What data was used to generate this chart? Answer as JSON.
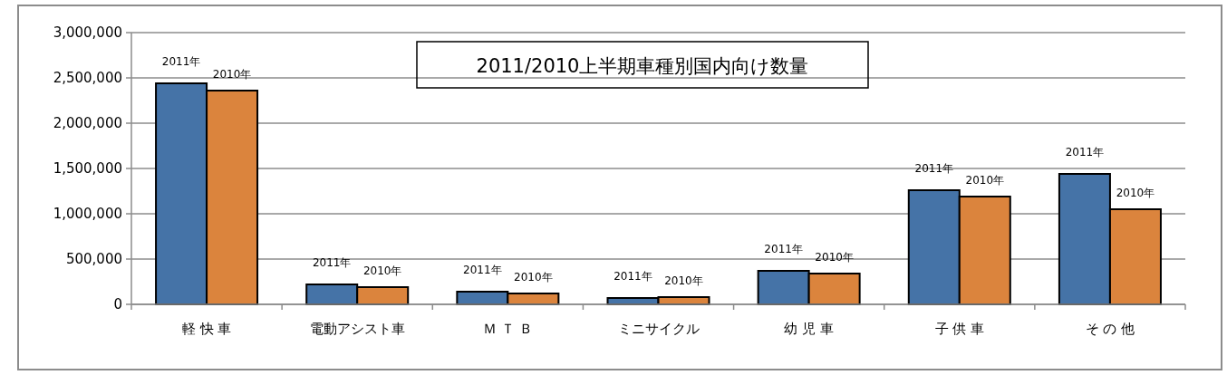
{
  "chart_data": {
    "type": "bar",
    "title": "2011/2010上半期車種別国内向け数量",
    "categories": [
      "軽 快 車",
      "電動アシスト車",
      "Ｍ Ｔ Ｂ",
      "ミニサイクル",
      "幼 児 車",
      "子 供 車",
      "そ の 他"
    ],
    "series": [
      {
        "name": "2011年",
        "color": "#4573a7",
        "values": [
          2440000,
          220000,
          140000,
          70000,
          370000,
          1260000,
          1440000
        ]
      },
      {
        "name": "2010年",
        "color": "#db843d",
        "values": [
          2360000,
          190000,
          120000,
          80000,
          340000,
          1190000,
          1050000
        ]
      }
    ],
    "ylim": [
      0,
      3000000
    ],
    "yticks": [
      {
        "value": 0,
        "label": "0"
      },
      {
        "value": 500000,
        "label": "500,000"
      },
      {
        "value": 1000000,
        "label": "1,000,000"
      },
      {
        "value": 1500000,
        "label": "1,500,000"
      },
      {
        "value": 2000000,
        "label": "2,000,000"
      },
      {
        "value": 2500000,
        "label": "2,500,000"
      },
      {
        "value": 3000000,
        "label": "3,000,000"
      }
    ],
    "grid": "y"
  }
}
